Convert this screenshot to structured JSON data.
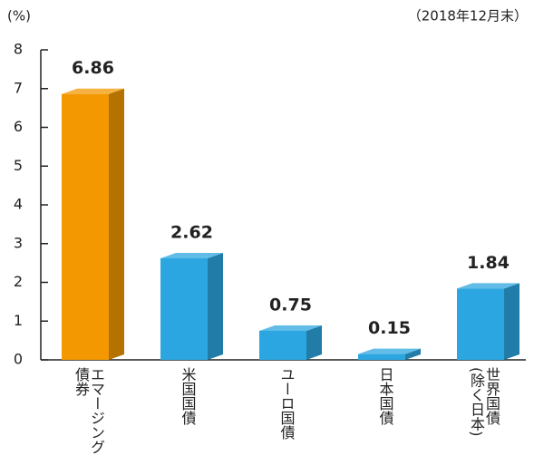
{
  "chart_data": {
    "type": "bar",
    "unit_label": "(%)",
    "note": "（2018年12月末）",
    "categories": [
      "エマージング\n債券",
      "米国国債",
      "ユーロ国債",
      "日本国債",
      "世界国債\n(除く日本)"
    ],
    "values": [
      6.86,
      2.62,
      0.75,
      0.15,
      1.84
    ],
    "colors": [
      "#f39800",
      "#2ca6e0",
      "#2ca6e0",
      "#2ca6e0",
      "#2ca6e0"
    ],
    "ylim": [
      0,
      8
    ],
    "yticks": [
      0,
      1,
      2,
      3,
      4,
      5,
      6,
      7,
      8
    ]
  }
}
